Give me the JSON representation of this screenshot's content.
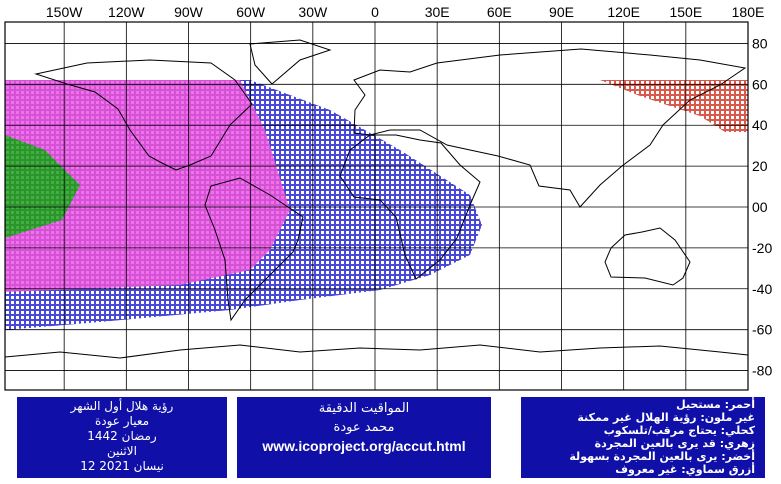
{
  "map": {
    "lon_labels": [
      "150W",
      "120W",
      "90W",
      "60W",
      "30W",
      "0",
      "30E",
      "60E",
      "90E",
      "120E",
      "150E",
      "180E"
    ],
    "lat_labels": [
      "80",
      "60",
      "40",
      "20",
      "00",
      "-20",
      "-40",
      "-60",
      "-80"
    ]
  },
  "boxes": {
    "left": [
      "رؤية هلال أول الشهر",
      "معيار عودة",
      "رمضان 1442",
      "الاثنين",
      "12 نيسان 2021"
    ],
    "middle": [
      "المواقيت الدقيقة",
      "محمد عودة",
      "www.icoproject.org/accut.html"
    ],
    "right": [
      "أحمر: مستحيل",
      "غير ملون: رؤية الهلال غير ممكنة",
      "كحلي: يحتاج مرقب/تلسكوب",
      "زهري: قد يرى بالعين المجردة",
      "أخضر: يرى بالعين المجردة بسهولة",
      "أزرق سماوي: غير معروف"
    ]
  }
}
